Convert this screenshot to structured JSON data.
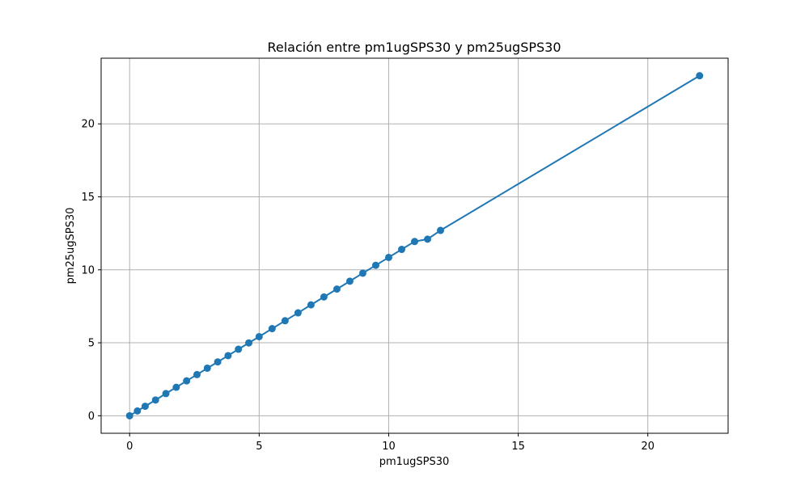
{
  "chart_data": {
    "type": "line",
    "title": "Relación entre pm1ugSPS30 y pm25ugSPS30",
    "xlabel": "pm1ugSPS30",
    "ylabel": "pm25ugSPS30",
    "xlim": [
      -1.1,
      23.1
    ],
    "ylim": [
      -1.2,
      24.5
    ],
    "xticks": [
      0,
      5,
      10,
      15,
      20
    ],
    "yticks": [
      0,
      5,
      10,
      15,
      20
    ],
    "grid": true,
    "markers": true,
    "color": "#1f77b4",
    "series": [
      {
        "x": [
          0,
          0.3,
          0.6,
          1.0,
          1.4,
          1.8,
          2.2,
          2.6,
          3.0,
          3.4,
          3.8,
          4.2,
          4.6,
          5.0,
          5.5,
          6.0,
          6.5,
          7.0,
          7.5,
          8.0,
          8.5,
          9.0,
          9.5,
          10.0,
          10.5,
          11.0,
          11.5,
          12.0,
          22.0
        ],
        "y": [
          0,
          0.33,
          0.65,
          1.08,
          1.52,
          1.95,
          2.39,
          2.82,
          3.26,
          3.69,
          4.12,
          4.56,
          4.99,
          5.42,
          5.97,
          6.51,
          7.05,
          7.6,
          8.14,
          8.68,
          9.22,
          9.77,
          10.31,
          10.85,
          11.4,
          11.94,
          12.1,
          12.7,
          23.3
        ]
      }
    ]
  }
}
